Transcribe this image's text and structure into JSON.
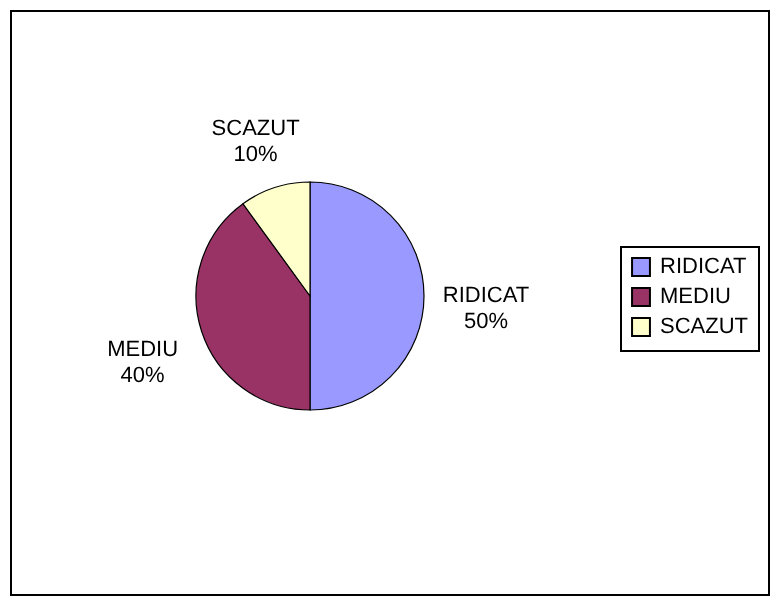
{
  "chart_data": {
    "type": "pie",
    "categories": [
      "RIDICAT",
      "MEDIU",
      "SCAZUT"
    ],
    "values": [
      50,
      40,
      10
    ],
    "colors": [
      "#9999ff",
      "#993366",
      "#ffffcc"
    ],
    "value_labels": [
      "50%",
      "40%",
      "10%"
    ],
    "legend": "right"
  }
}
